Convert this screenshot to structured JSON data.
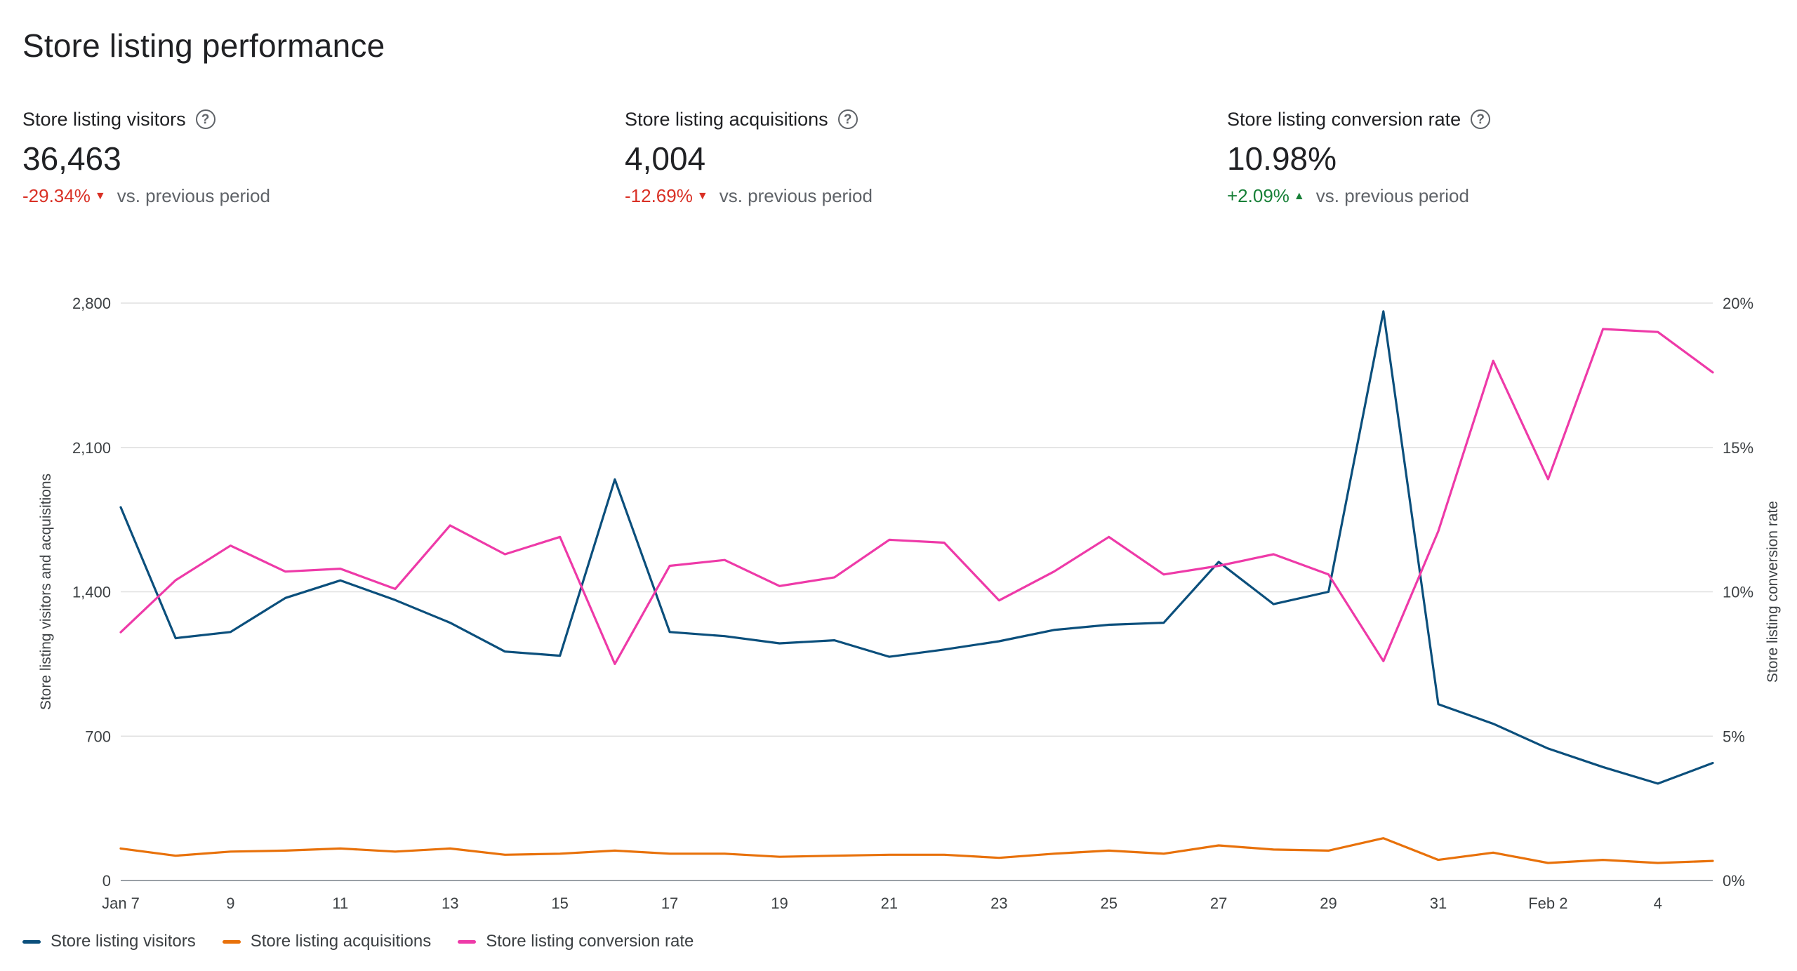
{
  "page": {
    "title": "Store listing performance"
  },
  "metrics": [
    {
      "label": "Store listing visitors",
      "value": "36,463",
      "change": "-29.34%",
      "direction": "down",
      "comparison": "vs. previous period",
      "help_icon": "help-circle-icon"
    },
    {
      "label": "Store listing acquisitions",
      "value": "4,004",
      "change": "-12.69%",
      "direction": "down",
      "comparison": "vs. previous period",
      "help_icon": "help-circle-icon"
    },
    {
      "label": "Store listing conversion rate",
      "value": "10.98%",
      "change": "+2.09%",
      "direction": "up",
      "comparison": "vs. previous period",
      "help_icon": "help-circle-icon"
    }
  ],
  "colors": {
    "visitors": "#0b4f7c",
    "acquisitions": "#e8710a",
    "conversion": "#ee3aa8",
    "negative": "#d93025",
    "positive": "#188038",
    "grid": "#e0e0e0"
  },
  "chart_data": {
    "type": "line",
    "ylabel": "Store listing visitors and acquisitions",
    "y2label": "Store listing conversion rate",
    "ylim": [
      0,
      2800
    ],
    "y2lim": [
      0,
      20
    ],
    "y_ticks": [
      "0",
      "700",
      "1,400",
      "2,100",
      "2,800"
    ],
    "y2_ticks": [
      "0%",
      "5%",
      "10%",
      "15%",
      "20%"
    ],
    "x_tick_labels": [
      "Jan 7",
      "9",
      "11",
      "13",
      "15",
      "17",
      "19",
      "21",
      "23",
      "25",
      "27",
      "29",
      "31",
      "Feb 2",
      "4"
    ],
    "x": [
      "Jan 7",
      "Jan 8",
      "Jan 9",
      "Jan 10",
      "Jan 11",
      "Jan 12",
      "Jan 13",
      "Jan 14",
      "Jan 15",
      "Jan 16",
      "Jan 17",
      "Jan 18",
      "Jan 19",
      "Jan 20",
      "Jan 21",
      "Jan 22",
      "Jan 23",
      "Jan 24",
      "Jan 25",
      "Jan 26",
      "Jan 27",
      "Jan 28",
      "Jan 29",
      "Jan 30",
      "Jan 31",
      "Feb 1",
      "Feb 2",
      "Feb 3",
      "Feb 4",
      "Feb 5"
    ],
    "series": [
      {
        "name": "Store listing visitors",
        "axis": "left",
        "values": [
          1810,
          1175,
          1205,
          1370,
          1455,
          1360,
          1250,
          1110,
          1090,
          1945,
          1205,
          1185,
          1150,
          1165,
          1085,
          1120,
          1160,
          1215,
          1240,
          1250,
          1545,
          1340,
          1400,
          2760,
          855,
          760,
          640,
          550,
          470,
          570
        ]
      },
      {
        "name": "Store listing acquisitions",
        "axis": "left",
        "values": [
          155,
          120,
          140,
          145,
          155,
          140,
          155,
          125,
          130,
          145,
          130,
          130,
          115,
          120,
          125,
          125,
          110,
          130,
          145,
          130,
          170,
          150,
          145,
          205,
          100,
          135,
          85,
          100,
          85,
          95
        ]
      },
      {
        "name": "Store listing conversion rate",
        "axis": "right",
        "values": [
          8.6,
          10.4,
          11.6,
          10.7,
          10.8,
          10.1,
          12.3,
          11.3,
          11.9,
          7.5,
          10.9,
          11.1,
          10.2,
          10.5,
          11.8,
          11.7,
          9.7,
          10.7,
          11.9,
          10.6,
          10.9,
          11.3,
          10.6,
          7.6,
          12.1,
          18.0,
          13.9,
          19.1,
          19.0,
          17.6
        ]
      }
    ],
    "legend_position": "bottom-left",
    "grid": true
  }
}
